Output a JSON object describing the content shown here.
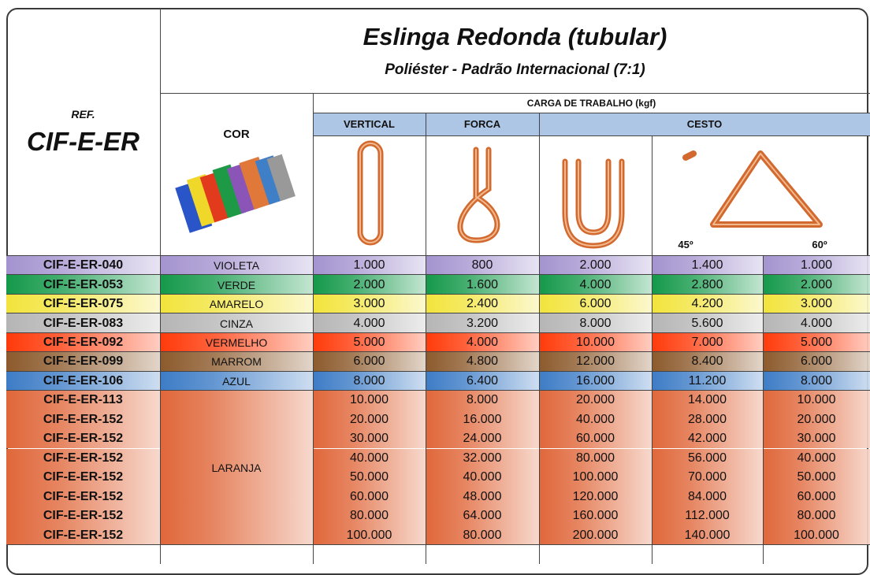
{
  "header": {
    "title": "Eslinga Redonda (tubular)",
    "subtitle": "Poliéster - Padrão Internacional (7:1)",
    "ref_label": "REF.",
    "ref_code": "CIF-E-ER",
    "color_label": "COR",
    "load_label": "CARGA DE TRABALHO (kgf)",
    "columns": [
      "VERTICAL",
      "FORCA",
      "CESTO"
    ],
    "angles": [
      "45º",
      "60º"
    ]
  },
  "groups": [
    {
      "color": "VIOLETA",
      "swatch": "#a493cf",
      "rows": [
        {
          "ref": "CIF-E-ER-040",
          "values": [
            "1.000",
            "800",
            "2.000",
            "1.400",
            "1.000"
          ]
        }
      ]
    },
    {
      "color": "VERDE",
      "swatch": "#14994a",
      "rows": [
        {
          "ref": "CIF-E-ER-053",
          "values": [
            "2.000",
            "1.600",
            "4.000",
            "2.800",
            "2.000"
          ]
        }
      ]
    },
    {
      "color": "AMARELO",
      "swatch": "#f2e43c",
      "rows": [
        {
          "ref": "CIF-E-ER-075",
          "values": [
            "3.000",
            "2.400",
            "6.000",
            "4.200",
            "3.000"
          ]
        }
      ]
    },
    {
      "color": "CINZA",
      "swatch": "#b5b5b5",
      "rows": [
        {
          "ref": "CIF-E-ER-083",
          "values": [
            "4.000",
            "3.200",
            "8.000",
            "5.600",
            "4.000"
          ]
        }
      ]
    },
    {
      "color": "VERMELHO",
      "swatch": "#ff3a0a",
      "rows": [
        {
          "ref": "CIF-E-ER-092",
          "values": [
            "5.000",
            "4.000",
            "10.000",
            "7.000",
            "5.000"
          ]
        }
      ]
    },
    {
      "color": "MARROM",
      "swatch": "#8c5a2c",
      "rows": [
        {
          "ref": "CIF-E-ER-099",
          "values": [
            "6.000",
            "4.800",
            "12.000",
            "8.400",
            "6.000"
          ]
        }
      ]
    },
    {
      "color": "AZUL",
      "swatch": "#3d7cc6",
      "rows": [
        {
          "ref": "CIF-E-ER-106",
          "values": [
            "8.000",
            "6.400",
            "16.000",
            "11.200",
            "8.000"
          ]
        }
      ]
    },
    {
      "color": "LARANJA",
      "swatch": "#e0673a",
      "rows": [
        {
          "ref": "CIF-E-ER-113",
          "values": [
            "10.000",
            "8.000",
            "20.000",
            "14.000",
            "10.000"
          ]
        },
        {
          "ref": "CIF-E-ER-152",
          "values": [
            "20.000",
            "16.000",
            "40.000",
            "28.000",
            "20.000"
          ]
        },
        {
          "ref": "CIF-E-ER-152",
          "values": [
            "30.000",
            "24.000",
            "60.000",
            "42.000",
            "30.000"
          ]
        },
        {
          "ref": "CIF-E-ER-152",
          "values": [
            "40.000",
            "32.000",
            "80.000",
            "56.000",
            "40.000"
          ]
        },
        {
          "ref": "CIF-E-ER-152",
          "values": [
            "50.000",
            "40.000",
            "100.000",
            "70.000",
            "50.000"
          ]
        },
        {
          "ref": "CIF-E-ER-152",
          "values": [
            "60.000",
            "48.000",
            "120.000",
            "84.000",
            "60.000"
          ]
        },
        {
          "ref": "CIF-E-ER-152",
          "values": [
            "80.000",
            "64.000",
            "160.000",
            "112.000",
            "80.000"
          ]
        },
        {
          "ref": "CIF-E-ER-152",
          "values": [
            "100.000",
            "80.000",
            "200.000",
            "140.000",
            "100.000"
          ]
        }
      ]
    }
  ]
}
